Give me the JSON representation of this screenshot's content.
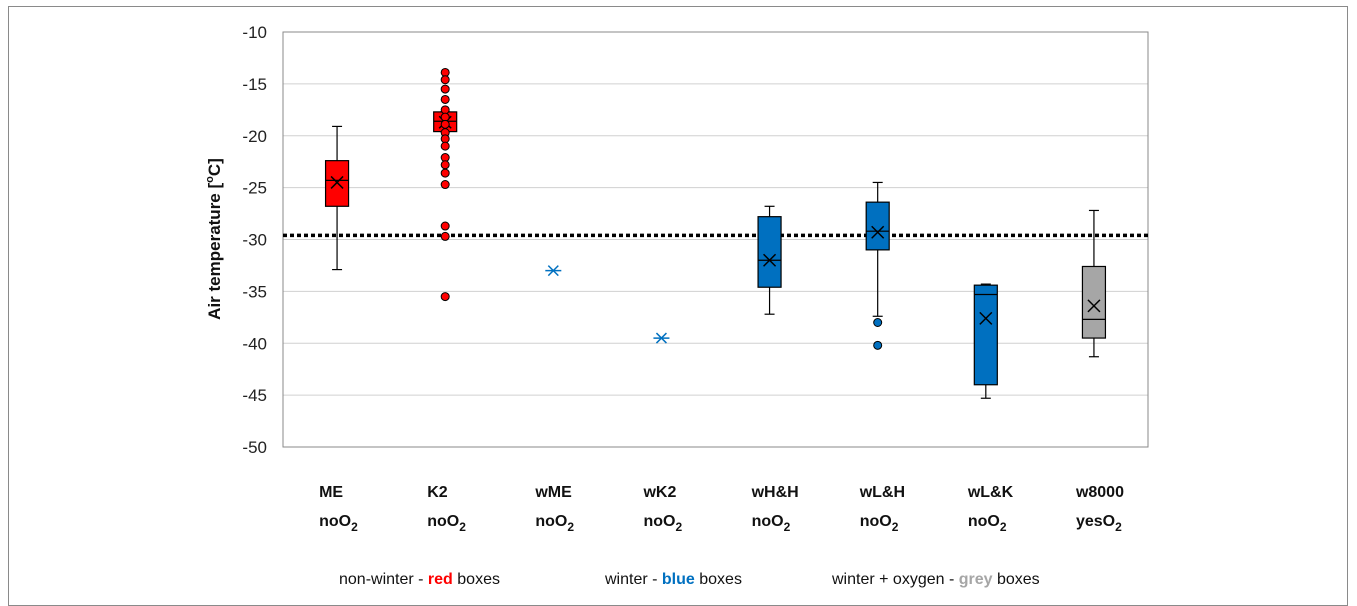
{
  "chart_data": {
    "type": "box",
    "ylabel": "Air temperature [",
    "ylabel_sup": "o",
    "ylabel_unit": "C]",
    "ylim": [
      -50,
      -10
    ],
    "yticks": [
      -10,
      -15,
      -20,
      -25,
      -30,
      -35,
      -40,
      -45,
      -50
    ],
    "grid": true,
    "reference_line": -29.6,
    "categories": [
      {
        "name": "ME",
        "sub_main": "noO",
        "sub_index": "2",
        "group": "non-winter",
        "color": "#ff0000",
        "box": {
          "whisker_high": -19.1,
          "q3": -22.4,
          "median": -24.3,
          "q1": -26.8,
          "whisker_low": -32.9,
          "mean": -24.5
        },
        "outliers": [],
        "points": []
      },
      {
        "name": "K2",
        "sub_main": "noO",
        "sub_index": "2",
        "group": "non-winter",
        "color": "#ff0000",
        "box": {
          "whisker_high": -17.7,
          "q3": -17.7,
          "median": -18.6,
          "q1": -19.6,
          "whisker_low": -19.6,
          "mean": -18.7
        },
        "outliers": [
          -13.9,
          -14.6,
          -15.5,
          -16.5,
          -17.5,
          -18.2,
          -18.9,
          -19.7,
          -20.3,
          -21.0,
          -22.1,
          -22.8,
          -23.6,
          -24.7,
          -28.7,
          -29.7,
          -35.5
        ],
        "points": []
      },
      {
        "name": "wME",
        "sub_main": "noO",
        "sub_index": "2",
        "group": "winter",
        "color": "#0070c0",
        "box": null,
        "outliers": [],
        "points": [
          -33.0
        ]
      },
      {
        "name": "wK2",
        "sub_main": "noO",
        "sub_index": "2",
        "group": "winter",
        "color": "#0070c0",
        "box": null,
        "outliers": [],
        "points": [
          -39.5
        ]
      },
      {
        "name": "wH&H",
        "sub_main": "noO",
        "sub_index": "2",
        "group": "winter",
        "color": "#0070c0",
        "box": {
          "whisker_high": -26.8,
          "q3": -27.8,
          "median": -32.0,
          "q1": -34.6,
          "whisker_low": -37.2,
          "mean": -32.0
        },
        "outliers": [],
        "points": []
      },
      {
        "name": "wL&H",
        "sub_main": "noO",
        "sub_index": "2",
        "group": "winter",
        "color": "#0070c0",
        "box": {
          "whisker_high": -24.5,
          "q3": -26.4,
          "median": -29.2,
          "q1": -31.0,
          "whisker_low": -37.4,
          "mean": -29.3
        },
        "outliers": [
          -38.0,
          -40.2
        ],
        "points": []
      },
      {
        "name": "wL&K",
        "sub_main": "noO",
        "sub_index": "2",
        "group": "winter",
        "color": "#0070c0",
        "box": {
          "whisker_high": -34.3,
          "q3": -34.4,
          "median": -35.3,
          "q1": -44.0,
          "whisker_low": -45.3,
          "mean": -37.6
        },
        "outliers": [],
        "points": []
      },
      {
        "name": "w8000",
        "sub_main": "yesO",
        "sub_index": "2",
        "group": "winter + oxygen",
        "color": "#a6a6a6",
        "box": {
          "whisker_high": -27.2,
          "q3": -32.6,
          "median": -37.7,
          "q1": -39.5,
          "whisker_low": -41.3,
          "mean": -36.4
        },
        "outliers": [],
        "points": []
      }
    ],
    "legend": [
      {
        "prefix": "non-winter - ",
        "keyword": "red",
        "suffix": " boxes",
        "color": "#ff0000"
      },
      {
        "prefix": "winter - ",
        "keyword": "blue",
        "suffix": " boxes",
        "color": "#0070c0"
      },
      {
        "prefix": "winter + oxygen - ",
        "keyword": "grey",
        "suffix": " boxes",
        "color": "#a6a6a6"
      }
    ]
  }
}
